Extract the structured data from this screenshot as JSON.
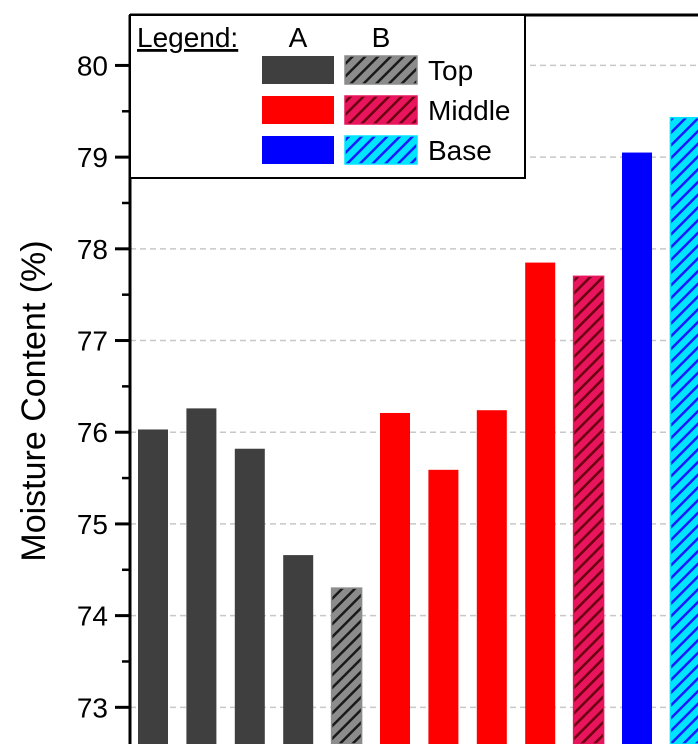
{
  "chart_data": {
    "type": "bar",
    "ylabel": "Moisture Content (%)",
    "xlabel": "",
    "ylim": [
      72.6,
      80.55
    ],
    "yticks": [
      73,
      74,
      75,
      76,
      77,
      78,
      79,
      80
    ],
    "grid": "horizontal-dashed",
    "legend": {
      "title": "Legend:",
      "columns": [
        "A",
        "B"
      ],
      "rows": [
        "Top",
        "Middle",
        "Base"
      ],
      "placement": "top-left"
    },
    "bars": [
      {
        "group": "Top",
        "type": "A",
        "value": 76.03
      },
      {
        "group": "Top",
        "type": "A",
        "value": 76.26
      },
      {
        "group": "Top",
        "type": "A",
        "value": 75.82
      },
      {
        "group": "Top",
        "type": "A",
        "value": 74.66
      },
      {
        "group": "Top",
        "type": "B",
        "value": 74.3
      },
      {
        "group": "Middle",
        "type": "A",
        "value": 76.21
      },
      {
        "group": "Middle",
        "type": "A",
        "value": 75.59
      },
      {
        "group": "Middle",
        "type": "A",
        "value": 76.24
      },
      {
        "group": "Middle",
        "type": "A",
        "value": 77.85
      },
      {
        "group": "Middle",
        "type": "B",
        "value": 77.7
      },
      {
        "group": "Base",
        "type": "A",
        "value": 79.05
      },
      {
        "group": "Base",
        "type": "B",
        "value": 79.43
      }
    ]
  },
  "colors": {
    "Top": {
      "A": "#3f3f3f",
      "B_bg": "#8c8c8c",
      "B_hatch": "#1a1a1a"
    },
    "Middle": {
      "A": "#ff0000",
      "B_bg": "#e8145c",
      "B_hatch": "#6a0010"
    },
    "Base": {
      "A": "#0000ff",
      "B_bg": "#00e5ff",
      "B_hatch": "#1a1aff"
    }
  }
}
